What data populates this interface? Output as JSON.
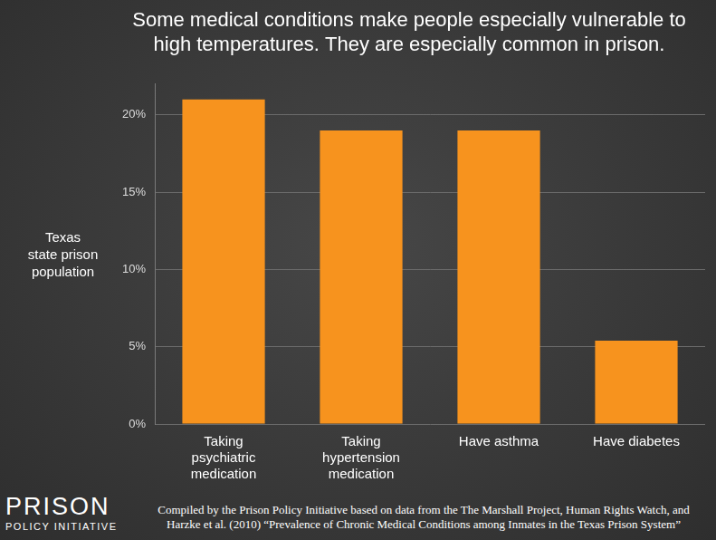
{
  "chart_data": {
    "type": "bar",
    "title": [
      "Some medical conditions make people especially vulnerable to",
      "high temperatures. They are especially common in prison."
    ],
    "y_label": [
      "Texas",
      "state prison",
      "population"
    ],
    "categories": [
      [
        "Taking",
        "psychiatric",
        "medication"
      ],
      [
        "Taking",
        "hypertension",
        "medication"
      ],
      [
        "Have asthma"
      ],
      [
        "Have diabetes"
      ]
    ],
    "values": [
      21,
      19,
      19,
      5.4
    ],
    "color": "#f7931e",
    "ylim": [
      0,
      22
    ],
    "yticks": [
      {
        "value": 0,
        "label": "0%"
      },
      {
        "value": 5,
        "label": "5%"
      },
      {
        "value": 10,
        "label": "10%"
      },
      {
        "value": 15,
        "label": "15%"
      },
      {
        "value": 20,
        "label": "20%"
      }
    ],
    "grid": true,
    "data_labels": false
  },
  "logo": [
    "PRISON",
    "POLICY INITIATIVE"
  ],
  "source": [
    "Compiled by the Prison Policy Initiative based on data from the The Marshall Project, Human Rights Watch, and",
    "Harzke et al. (2010) “Prevalence of Chronic Medical Conditions among Inmates in the Texas Prison System”"
  ]
}
